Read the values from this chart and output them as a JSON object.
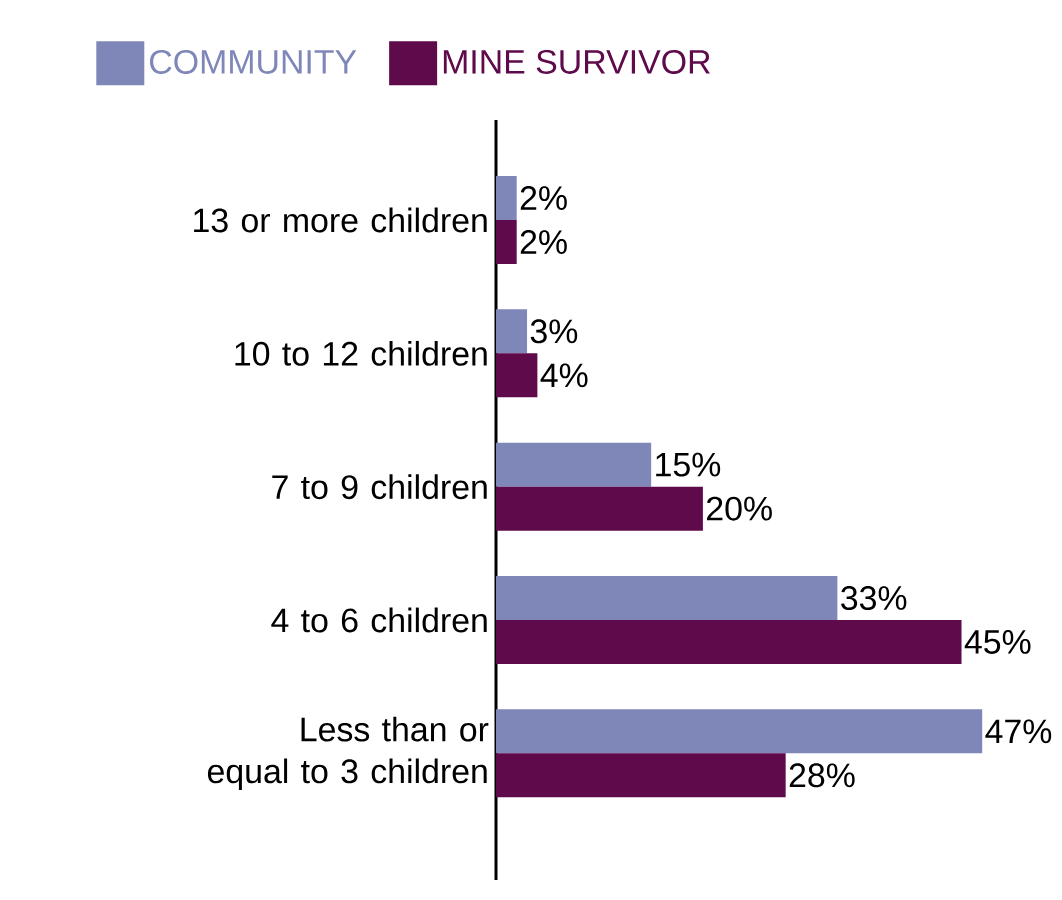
{
  "chart_data": {
    "type": "bar",
    "orientation": "horizontal",
    "categories": [
      "13 or more children",
      "10 to 12 children",
      "7 to 9 children",
      "4 to 6 children",
      "Less than or equal to 3 children"
    ],
    "series": [
      {
        "name": "COMMUNITY",
        "color": "#7f87b9",
        "values": [
          2,
          3,
          15,
          33,
          47
        ],
        "value_labels": [
          "2%",
          "3%",
          "15%",
          "33%",
          "47%"
        ]
      },
      {
        "name": "MINE SURVIVOR",
        "color": "#5e0a4b",
        "values": [
          2,
          4,
          20,
          45,
          28
        ],
        "value_labels": [
          "2%",
          "4%",
          "20%",
          "45%",
          "28%"
        ]
      }
    ],
    "legend": "top left",
    "tick_labels": "y"
  }
}
